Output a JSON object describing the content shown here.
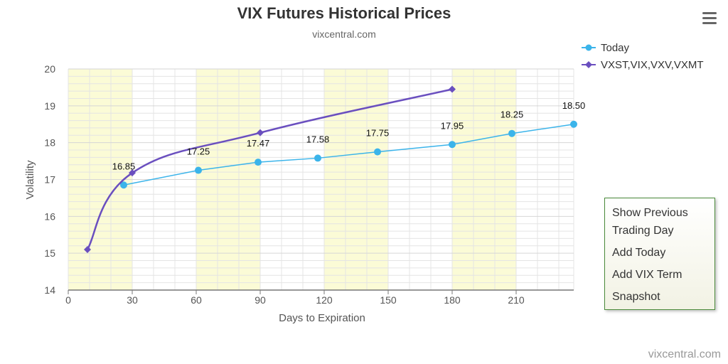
{
  "chart_data": {
    "type": "line",
    "title": "VIX Futures Historical Prices",
    "subtitle": "vixcentral.com",
    "xlabel": "Days to Expiration",
    "ylabel": "Volatility",
    "xlim": [
      0,
      237
    ],
    "ylim": [
      14,
      20
    ],
    "x_ticks": [
      0,
      30,
      60,
      90,
      120,
      150,
      180,
      210
    ],
    "y_ticks": [
      14,
      15,
      16,
      17,
      18,
      19,
      20
    ],
    "grid": true,
    "legend": "top-right",
    "series": [
      {
        "name": "Today",
        "color": "#3bb4ea",
        "marker": "circle",
        "points": [
          {
            "x": 26,
            "y": 16.85,
            "label": "16.85"
          },
          {
            "x": 61,
            "y": 17.25,
            "label": "17.25"
          },
          {
            "x": 89,
            "y": 17.47,
            "label": "17.47"
          },
          {
            "x": 117,
            "y": 17.58,
            "label": "17.58"
          },
          {
            "x": 145,
            "y": 17.75,
            "label": "17.75"
          },
          {
            "x": 180,
            "y": 17.95,
            "label": "17.95"
          },
          {
            "x": 208,
            "y": 18.25,
            "label": "18.25"
          },
          {
            "x": 237,
            "y": 18.5,
            "label": "18.50"
          }
        ]
      },
      {
        "name": "VXST,VIX,VXV,VXMT",
        "color": "#6a4fbf",
        "marker": "diamond",
        "points": [
          {
            "x": 9,
            "y": 15.1
          },
          {
            "x": 30,
            "y": 17.18
          },
          {
            "x": 90,
            "y": 18.27
          },
          {
            "x": 180,
            "y": 19.45
          }
        ]
      }
    ]
  },
  "menu": {
    "items": [
      "Show Previous Trading Day",
      "Add Today",
      "Add VIX Term",
      "Snapshot"
    ]
  },
  "credit": "vixcentral.com",
  "colors": {
    "band": "#fbfbd6",
    "grid": "#e4e4e4",
    "menu_border": "#4a8a3a"
  },
  "icons": {
    "export_menu": "hamburger-icon"
  }
}
